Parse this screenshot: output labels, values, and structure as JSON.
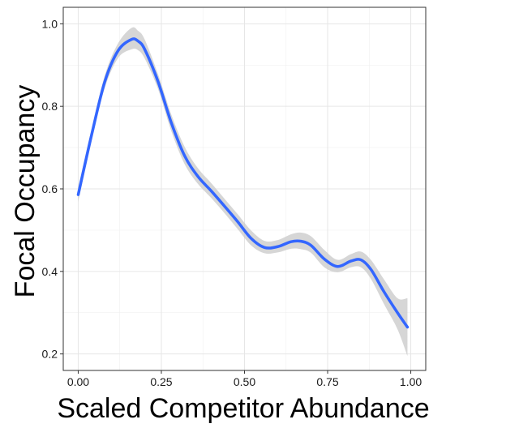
{
  "chart_data": {
    "type": "line",
    "xlabel": "Scaled Competitor Abundance",
    "ylabel": "Focal Occupancy",
    "xlim": [
      -0.045,
      1.045
    ],
    "ylim": [
      0.16,
      1.04
    ],
    "x_ticks": [
      0.0,
      0.25,
      0.5,
      0.75,
      1.0
    ],
    "x_tick_labels": [
      "0.00",
      "0.25",
      "0.50",
      "0.75",
      "1.00"
    ],
    "y_ticks": [
      0.2,
      0.4,
      0.6,
      0.8,
      1.0
    ],
    "y_tick_labels": [
      "0.2",
      "0.4",
      "0.6",
      "0.8",
      "1.0"
    ],
    "grid": true,
    "legend": "none",
    "series": [
      {
        "color": "#3366ff",
        "band_color": "#cccccc",
        "x": [
          0.0,
          0.04,
          0.08,
          0.12,
          0.16,
          0.18,
          0.2,
          0.24,
          0.28,
          0.32,
          0.36,
          0.4,
          0.44,
          0.48,
          0.52,
          0.56,
          0.6,
          0.64,
          0.67,
          0.7,
          0.74,
          0.78,
          0.82,
          0.85,
          0.88,
          0.92,
          0.96,
          0.99
        ],
        "y": [
          0.586,
          0.73,
          0.86,
          0.935,
          0.962,
          0.958,
          0.938,
          0.86,
          0.76,
          0.68,
          0.63,
          0.595,
          0.558,
          0.52,
          0.48,
          0.458,
          0.46,
          0.472,
          0.473,
          0.463,
          0.43,
          0.412,
          0.425,
          0.428,
          0.405,
          0.35,
          0.3,
          0.265
        ],
        "lower": [
          0.568,
          0.716,
          0.845,
          0.917,
          0.938,
          0.936,
          0.916,
          0.842,
          0.74,
          0.66,
          0.612,
          0.578,
          0.541,
          0.502,
          0.463,
          0.444,
          0.446,
          0.455,
          0.454,
          0.445,
          0.41,
          0.398,
          0.41,
          0.41,
          0.382,
          0.32,
          0.26,
          0.195
        ],
        "upper": [
          0.604,
          0.744,
          0.875,
          0.953,
          0.99,
          0.983,
          0.962,
          0.878,
          0.78,
          0.702,
          0.65,
          0.614,
          0.576,
          0.538,
          0.499,
          0.474,
          0.476,
          0.49,
          0.494,
          0.485,
          0.452,
          0.428,
          0.442,
          0.448,
          0.428,
          0.38,
          0.335,
          0.335
        ]
      }
    ]
  }
}
